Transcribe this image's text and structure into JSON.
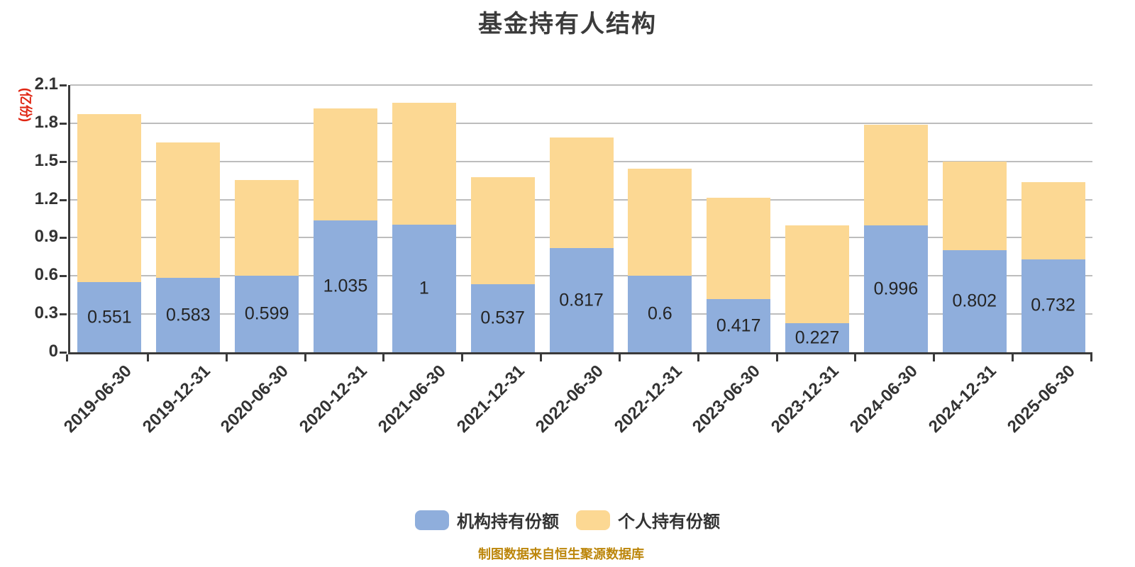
{
  "title": "基金持有人结构",
  "footer": "制图数据来自恒生聚源数据库",
  "legend": {
    "items": [
      {
        "label": "机构持有份额",
        "color": "#8FAEDC"
      },
      {
        "label": "个人持有份额",
        "color": "#FCD893"
      }
    ]
  },
  "colors": {
    "institutional": "#8FAEDC",
    "personal": "#FCD893",
    "gridline": "#BDBDBD",
    "axis": "#3A3A3A",
    "tick_text": "#333333",
    "title_text": "#3B3B3B",
    "y_name_text": "#E02512",
    "footer_text": "#BC860B",
    "value_label_text": "#242424"
  },
  "chart_data": {
    "type": "bar",
    "stacked": true,
    "title": "基金持有人结构",
    "categories": [
      "2019-06-30",
      "2019-12-31",
      "2020-06-30",
      "2020-12-31",
      "2021-06-30",
      "2021-12-31",
      "2022-06-30",
      "2022-12-31",
      "2023-06-30",
      "2023-12-31",
      "2024-06-30",
      "2024-12-31",
      "2025-06-30"
    ],
    "series": [
      {
        "name": "机构持有份额",
        "color": "#8FAEDC",
        "values": [
          0.551,
          0.583,
          0.599,
          1.035,
          1,
          0.537,
          0.817,
          0.6,
          0.417,
          0.227,
          0.996,
          0.802,
          0.732
        ],
        "display_labels": [
          "0.551",
          "0.583",
          "0.599",
          "1.035",
          "1",
          "0.537",
          "0.817",
          "0.6",
          "0.417",
          "0.227",
          "0.996",
          "0.802",
          "0.732"
        ],
        "labels_shown": true
      },
      {
        "name": "个人持有份额",
        "color": "#FCD893",
        "values": [
          1.321,
          1.068,
          0.755,
          0.883,
          0.961,
          0.839,
          0.871,
          0.841,
          0.799,
          0.772,
          0.794,
          0.695,
          0.607
        ],
        "labels_shown": false,
        "estimated_from_pixels": true
      }
    ],
    "xlabel": "",
    "ylabel": "(亿份)",
    "ylim": [
      0,
      2.1
    ],
    "yticks": [
      0,
      0.3,
      0.6,
      0.9,
      1.2,
      1.5,
      1.8,
      2.1
    ],
    "grid": true,
    "legend_position": "bottom",
    "x_tick_label_rotation": -45,
    "footnote": "制图数据来自恒生聚源数据库"
  }
}
